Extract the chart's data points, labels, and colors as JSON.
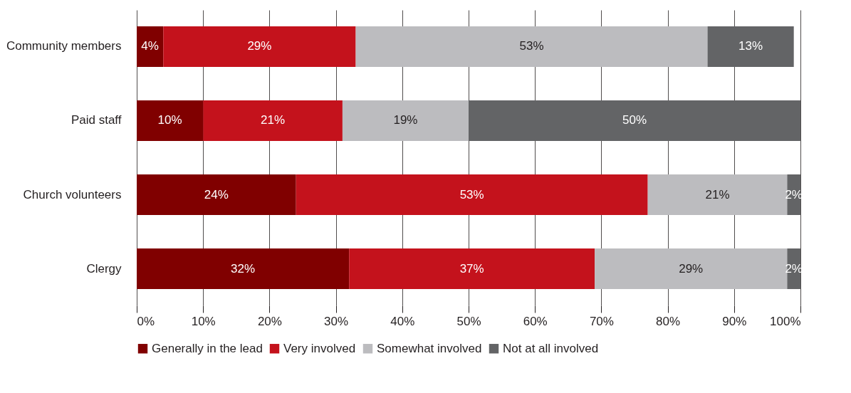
{
  "chart_data": {
    "type": "bar",
    "orientation": "horizontal",
    "stacked": true,
    "categories": [
      "Community members",
      "Paid staff",
      "Church volunteers",
      "Clergy"
    ],
    "series": [
      {
        "name": "Generally in the lead",
        "color": "#800000",
        "values": [
          4,
          10,
          24,
          32
        ],
        "value_labels": [
          "4%",
          "10%",
          "24%",
          "32%"
        ]
      },
      {
        "name": "Very involved",
        "color": "#c4121c",
        "values": [
          29,
          21,
          53,
          37
        ],
        "value_labels": [
          "29%",
          "21%",
          "53%",
          "37%"
        ]
      },
      {
        "name": "Somewhat involved",
        "color": "#bcbcbf",
        "values": [
          53,
          19,
          21,
          29
        ],
        "value_labels": [
          "53%",
          "19%",
          "21%",
          "29%"
        ]
      },
      {
        "name": "Not at all involved",
        "color": "#636466",
        "values": [
          13,
          50,
          2,
          2
        ],
        "value_labels": [
          "13%",
          "50%",
          "2%",
          "2%"
        ]
      }
    ],
    "xlim": [
      0,
      100
    ],
    "xticks": [
      {
        "value": 0,
        "label": "0%"
      },
      {
        "value": 10,
        "label": "10%"
      },
      {
        "value": 20,
        "label": "20%"
      },
      {
        "value": 30,
        "label": "30%"
      },
      {
        "value": 40,
        "label": "40%"
      },
      {
        "value": 50,
        "label": "50%"
      },
      {
        "value": 60,
        "label": "60%"
      },
      {
        "value": 70,
        "label": "70%"
      },
      {
        "value": 80,
        "label": "80%"
      },
      {
        "value": 90,
        "label": "90%"
      },
      {
        "value": 100,
        "label": "100%"
      }
    ],
    "grid": "x",
    "legend": "bottom"
  }
}
